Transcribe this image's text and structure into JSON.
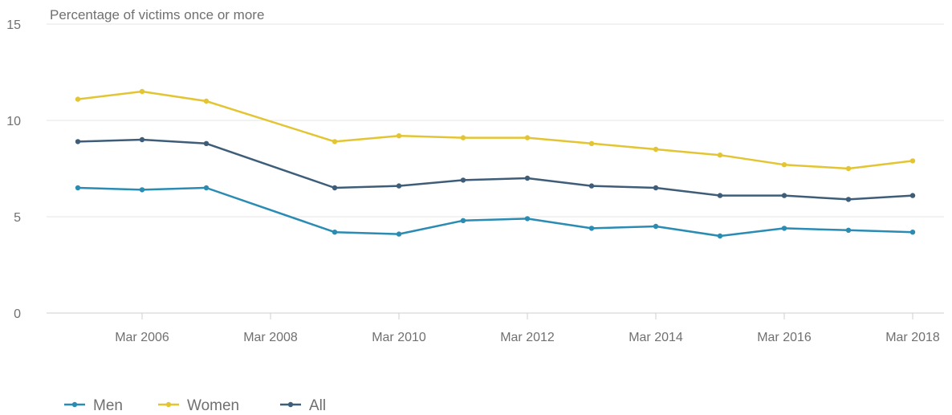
{
  "chart_data": {
    "type": "line",
    "ylabel": "Percentage of victims once or more",
    "x": [
      "Mar 2005",
      "Mar 2006",
      "Mar 2007",
      "Mar 2009",
      "Mar 2010",
      "Mar 2011",
      "Mar 2012",
      "Mar 2013",
      "Mar 2014",
      "Mar 2015",
      "Mar 2016",
      "Mar 2017",
      "Mar 2018"
    ],
    "x_tick_labels": [
      "Mar 2006",
      "Mar 2008",
      "Mar 2010",
      "Mar 2012",
      "Mar 2014",
      "Mar 2016",
      "Mar 2018"
    ],
    "y_ticks": [
      0,
      5,
      10,
      15
    ],
    "ylim": [
      0,
      15
    ],
    "grid": true,
    "legend_position": "bottom-left",
    "series": [
      {
        "name": "Men",
        "color": "#2a8bb3",
        "values": [
          6.5,
          6.4,
          6.5,
          4.2,
          4.1,
          4.8,
          4.9,
          4.4,
          4.5,
          4.0,
          4.4,
          4.3,
          4.2
        ]
      },
      {
        "name": "Women",
        "color": "#e3c534",
        "values": [
          11.1,
          11.5,
          11.0,
          8.9,
          9.2,
          9.1,
          9.1,
          8.8,
          8.5,
          8.2,
          7.7,
          7.5,
          7.9
        ]
      },
      {
        "name": "All",
        "color": "#3e5d78",
        "values": [
          8.9,
          9.0,
          8.8,
          6.5,
          6.6,
          6.9,
          7.0,
          6.6,
          6.5,
          6.1,
          6.1,
          5.9,
          6.1
        ]
      }
    ]
  }
}
